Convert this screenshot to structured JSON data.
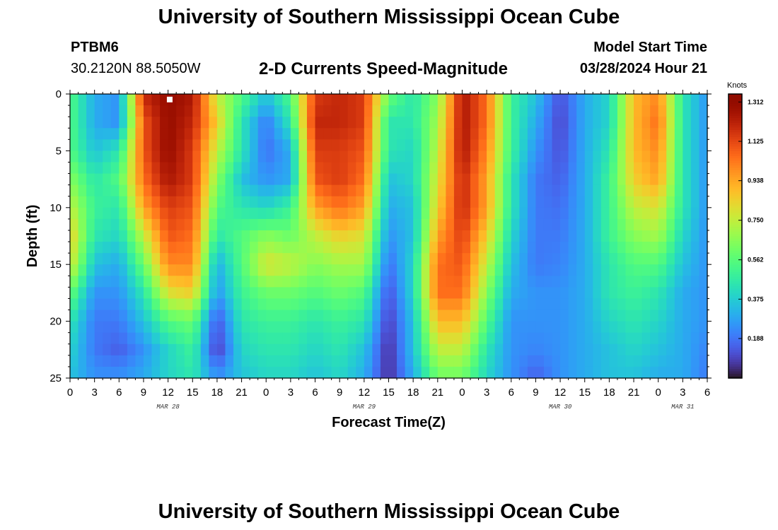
{
  "header": {
    "title": "University of Southern Mississippi Ocean Cube",
    "station": "PTBM6",
    "coordinates": "30.2120N  88.5050W",
    "plot_title": "2-D Currents Speed-Magnitude",
    "model_start_label": "Model Start Time",
    "model_start_value": "03/28/2024 Hour 21"
  },
  "footer": {
    "title": "University of Southern Mississippi Ocean Cube"
  },
  "chart_data": {
    "type": "heatmap",
    "title": "2-D Currents Speed-Magnitude",
    "xlabel": "Forecast Time(Z)",
    "ylabel": "Depth (ft)",
    "x_hours_range": [
      0,
      78
    ],
    "ylim": [
      0,
      25
    ],
    "y_inverted": true,
    "x_tick_labels": [
      "0",
      "3",
      "6",
      "9",
      "12",
      "15",
      "18",
      "21",
      "0",
      "3",
      "6",
      "9",
      "12",
      "15",
      "18",
      "21",
      "0",
      "3",
      "6",
      "9",
      "12",
      "15",
      "18",
      "21",
      "0",
      "3",
      "6"
    ],
    "x_tick_hours": [
      0,
      3,
      6,
      9,
      12,
      15,
      18,
      21,
      24,
      27,
      30,
      33,
      36,
      39,
      42,
      45,
      48,
      51,
      54,
      57,
      60,
      63,
      66,
      69,
      72,
      75,
      78
    ],
    "date_labels": [
      {
        "text": "MAR 28",
        "hour": 12
      },
      {
        "text": "MAR 29",
        "hour": 36
      },
      {
        "text": "MAR 30",
        "hour": 60
      },
      {
        "text": "MAR 31",
        "hour": 75
      }
    ],
    "y_ticks": [
      0,
      5,
      10,
      15,
      20,
      25
    ],
    "colorbar": {
      "unit": "Knots",
      "min": 0,
      "max": 1.35,
      "tick_labels": [
        "1.312",
        "1.125",
        "0.938",
        "0.750",
        "0.562",
        "0.375",
        "0.188"
      ],
      "tick_values": [
        1.312,
        1.125,
        0.938,
        0.75,
        0.562,
        0.375,
        0.188
      ],
      "colormap": "turbo"
    },
    "marker": {
      "hour": 12.2,
      "depth": 0.3,
      "color": "#ffffff"
    },
    "grid": {
      "depths_ft": [
        0,
        2.5,
        5,
        7.5,
        10,
        12.5,
        15,
        17.5,
        20,
        22.5,
        25
      ],
      "hours": [
        0,
        3,
        6,
        9,
        12,
        15,
        18,
        21,
        24,
        27,
        30,
        33,
        36,
        39,
        42,
        45,
        48,
        51,
        54,
        57,
        60,
        63,
        66,
        69,
        72,
        75,
        78
      ]
    },
    "speed_knots": [
      [
        0.55,
        0.3,
        0.25,
        1.2,
        1.3,
        1.25,
        0.75,
        0.55,
        0.35,
        0.55,
        1.15,
        1.2,
        1.15,
        0.6,
        0.45,
        0.65,
        1.25,
        1.05,
        0.5,
        0.35,
        0.12,
        0.3,
        0.4,
        0.9,
        1.0,
        0.45,
        0.25
      ],
      [
        0.55,
        0.3,
        0.25,
        1.1,
        1.3,
        1.2,
        0.85,
        0.45,
        0.2,
        0.45,
        1.2,
        1.2,
        1.15,
        0.45,
        0.45,
        0.7,
        1.25,
        1.05,
        0.5,
        0.3,
        0.1,
        0.3,
        0.4,
        0.9,
        1.05,
        0.45,
        0.25
      ],
      [
        0.55,
        0.35,
        0.45,
        1.1,
        1.3,
        1.15,
        0.75,
        0.45,
        0.18,
        0.3,
        1.15,
        1.15,
        1.1,
        0.45,
        0.4,
        0.75,
        1.25,
        1.0,
        0.5,
        0.25,
        0.12,
        0.3,
        0.45,
        0.9,
        1.0,
        0.45,
        0.25
      ],
      [
        0.65,
        0.45,
        0.55,
        1.05,
        1.25,
        1.15,
        0.65,
        0.35,
        0.25,
        0.3,
        1.1,
        1.15,
        1.05,
        0.35,
        0.4,
        0.8,
        1.2,
        0.95,
        0.45,
        0.2,
        0.15,
        0.3,
        0.5,
        0.85,
        0.95,
        0.45,
        0.25
      ],
      [
        0.75,
        0.5,
        0.45,
        0.95,
        1.15,
        1.1,
        0.55,
        0.45,
        0.4,
        0.5,
        0.95,
        1.05,
        0.95,
        0.3,
        0.35,
        0.85,
        1.2,
        0.95,
        0.45,
        0.2,
        0.18,
        0.3,
        0.5,
        0.75,
        0.8,
        0.45,
        0.25
      ],
      [
        0.85,
        0.45,
        0.4,
        0.75,
        1.1,
        1.05,
        0.45,
        0.55,
        0.65,
        0.6,
        0.75,
        0.85,
        0.8,
        0.25,
        0.35,
        0.95,
        1.15,
        0.85,
        0.4,
        0.2,
        0.2,
        0.3,
        0.5,
        0.65,
        0.7,
        0.4,
        0.25
      ],
      [
        0.8,
        0.35,
        0.3,
        0.6,
        1.0,
        1.0,
        0.3,
        0.55,
        0.8,
        0.75,
        0.65,
        0.7,
        0.7,
        0.18,
        0.4,
        1.05,
        1.1,
        0.75,
        0.35,
        0.2,
        0.22,
        0.3,
        0.45,
        0.55,
        0.55,
        0.35,
        0.25
      ],
      [
        0.6,
        0.25,
        0.25,
        0.45,
        0.8,
        0.85,
        0.25,
        0.5,
        0.6,
        0.6,
        0.55,
        0.6,
        0.55,
        0.12,
        0.4,
        1.05,
        1.05,
        0.65,
        0.3,
        0.25,
        0.25,
        0.3,
        0.45,
        0.5,
        0.45,
        0.3,
        0.25
      ],
      [
        0.45,
        0.2,
        0.2,
        0.35,
        0.55,
        0.6,
        0.12,
        0.45,
        0.5,
        0.5,
        0.45,
        0.5,
        0.45,
        0.08,
        0.35,
        0.9,
        0.9,
        0.55,
        0.25,
        0.25,
        0.25,
        0.3,
        0.4,
        0.45,
        0.4,
        0.3,
        0.25
      ],
      [
        0.4,
        0.2,
        0.15,
        0.25,
        0.4,
        0.5,
        0.08,
        0.4,
        0.45,
        0.45,
        0.4,
        0.45,
        0.35,
        0.05,
        0.35,
        0.75,
        0.75,
        0.45,
        0.25,
        0.22,
        0.25,
        0.3,
        0.35,
        0.4,
        0.35,
        0.3,
        0.22
      ],
      [
        0.35,
        0.25,
        0.25,
        0.3,
        0.4,
        0.45,
        0.25,
        0.35,
        0.4,
        0.4,
        0.35,
        0.4,
        0.3,
        0.05,
        0.3,
        0.6,
        0.6,
        0.4,
        0.25,
        0.15,
        0.25,
        0.3,
        0.35,
        0.35,
        0.3,
        0.3,
        0.2
      ]
    ]
  }
}
